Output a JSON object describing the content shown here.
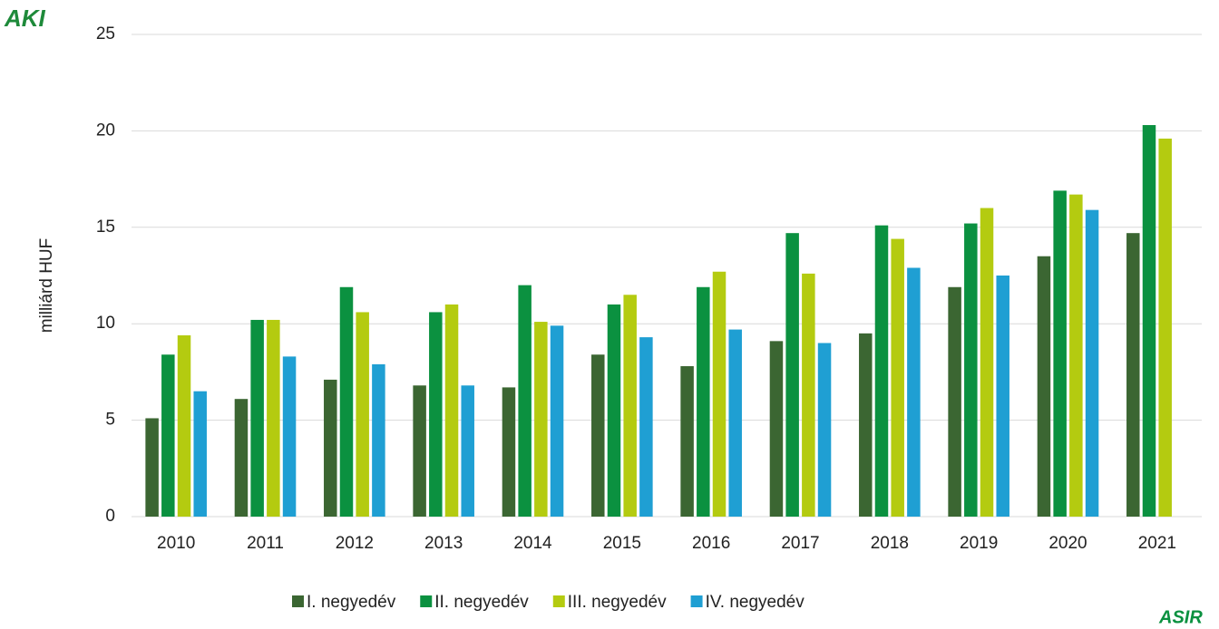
{
  "header": {
    "logo": "AKI"
  },
  "footer": {
    "logo": "ASIR"
  },
  "chart_data": {
    "type": "bar",
    "ylabel": "milliárd HUF",
    "categories": [
      "2010",
      "2011",
      "2012",
      "2013",
      "2014",
      "2015",
      "2016",
      "2017",
      "2018",
      "2019",
      "2020",
      "2021"
    ],
    "series": [
      {
        "name": "I. negyedév",
        "color": "#3b6632",
        "values": [
          5.1,
          6.1,
          7.1,
          6.8,
          6.7,
          8.4,
          7.8,
          9.1,
          9.5,
          11.9,
          13.5,
          14.7
        ]
      },
      {
        "name": "II. negyedév",
        "color": "#0b9140",
        "values": [
          8.4,
          10.2,
          11.9,
          10.6,
          12.0,
          11.0,
          11.9,
          14.7,
          15.1,
          15.2,
          16.9,
          20.3
        ]
      },
      {
        "name": "III. negyedév",
        "color": "#b4cb10",
        "values": [
          9.4,
          10.2,
          10.6,
          11.0,
          10.1,
          11.5,
          12.7,
          12.6,
          14.4,
          16.0,
          16.7,
          19.6
        ]
      },
      {
        "name": "IV. negyedév",
        "color": "#1f9fd3",
        "values": [
          6.5,
          8.3,
          7.9,
          6.8,
          9.9,
          9.3,
          9.7,
          9.0,
          12.9,
          12.5,
          15.9,
          null
        ]
      }
    ],
    "ylim": [
      0,
      25
    ],
    "yticks": [
      0,
      5,
      10,
      15,
      20,
      25
    ],
    "grid": true,
    "legend": "bottom"
  }
}
